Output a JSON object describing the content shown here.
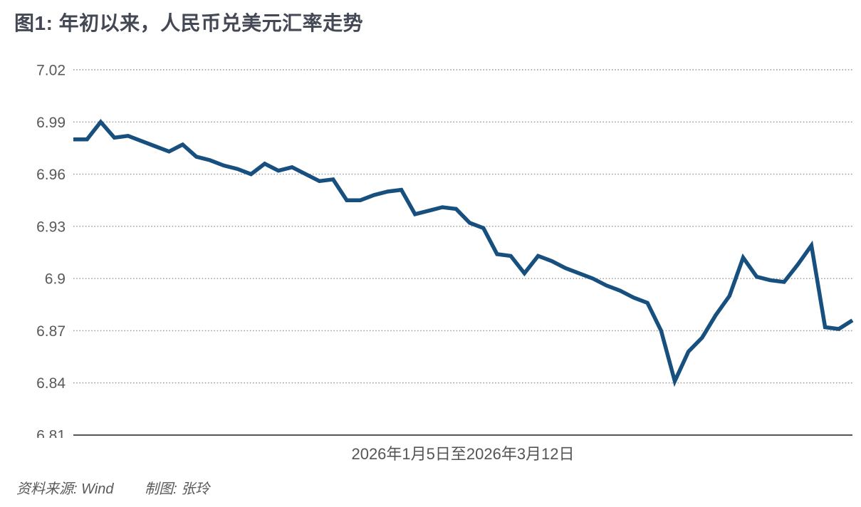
{
  "title": "图1: 年初以来，人民币兑美元汇率走势",
  "footer": {
    "source_label": "资料来源: Wind",
    "credit_label": "制图: 张玲"
  },
  "colors": {
    "line": "#17507F",
    "title_text": "#434854",
    "grid_dotted": "#999999",
    "axis_solid": "#555555",
    "tick_text": "#595959",
    "xlabel_text": "#555555",
    "footer_text": "#595959",
    "background": "#ffffff"
  },
  "chart_data": {
    "type": "line",
    "title": "图1: 年初以来，人民币兑美元汇率走势",
    "xlabel": "2026年1月5日至2026年3月12日",
    "ylabel": "",
    "ylim": [
      6.81,
      7.02
    ],
    "ytick_step": 0.03,
    "yticks": [
      "7.02",
      "6.99",
      "6.96",
      "6.93",
      "6.9",
      "6.87",
      "6.84",
      "6.81"
    ],
    "grid": "horizontal-dotted, solid bottom axis",
    "legend_position": "none",
    "series": [
      {
        "name": "人民币兑美元汇率",
        "values": [
          6.98,
          6.98,
          6.99,
          6.981,
          6.982,
          6.979,
          6.976,
          6.973,
          6.977,
          6.97,
          6.968,
          6.965,
          6.963,
          6.96,
          6.966,
          6.962,
          6.964,
          6.96,
          6.956,
          6.957,
          6.945,
          6.945,
          6.948,
          6.95,
          6.951,
          6.937,
          6.939,
          6.941,
          6.94,
          6.932,
          6.929,
          6.914,
          6.913,
          6.903,
          6.913,
          6.91,
          6.906,
          6.903,
          6.9,
          6.896,
          6.893,
          6.889,
          6.886,
          6.87,
          6.841,
          6.858,
          6.866,
          6.879,
          6.89,
          6.912,
          6.901,
          6.899,
          6.898,
          6.908,
          6.919,
          6.872,
          6.871,
          6.876
        ]
      }
    ]
  }
}
